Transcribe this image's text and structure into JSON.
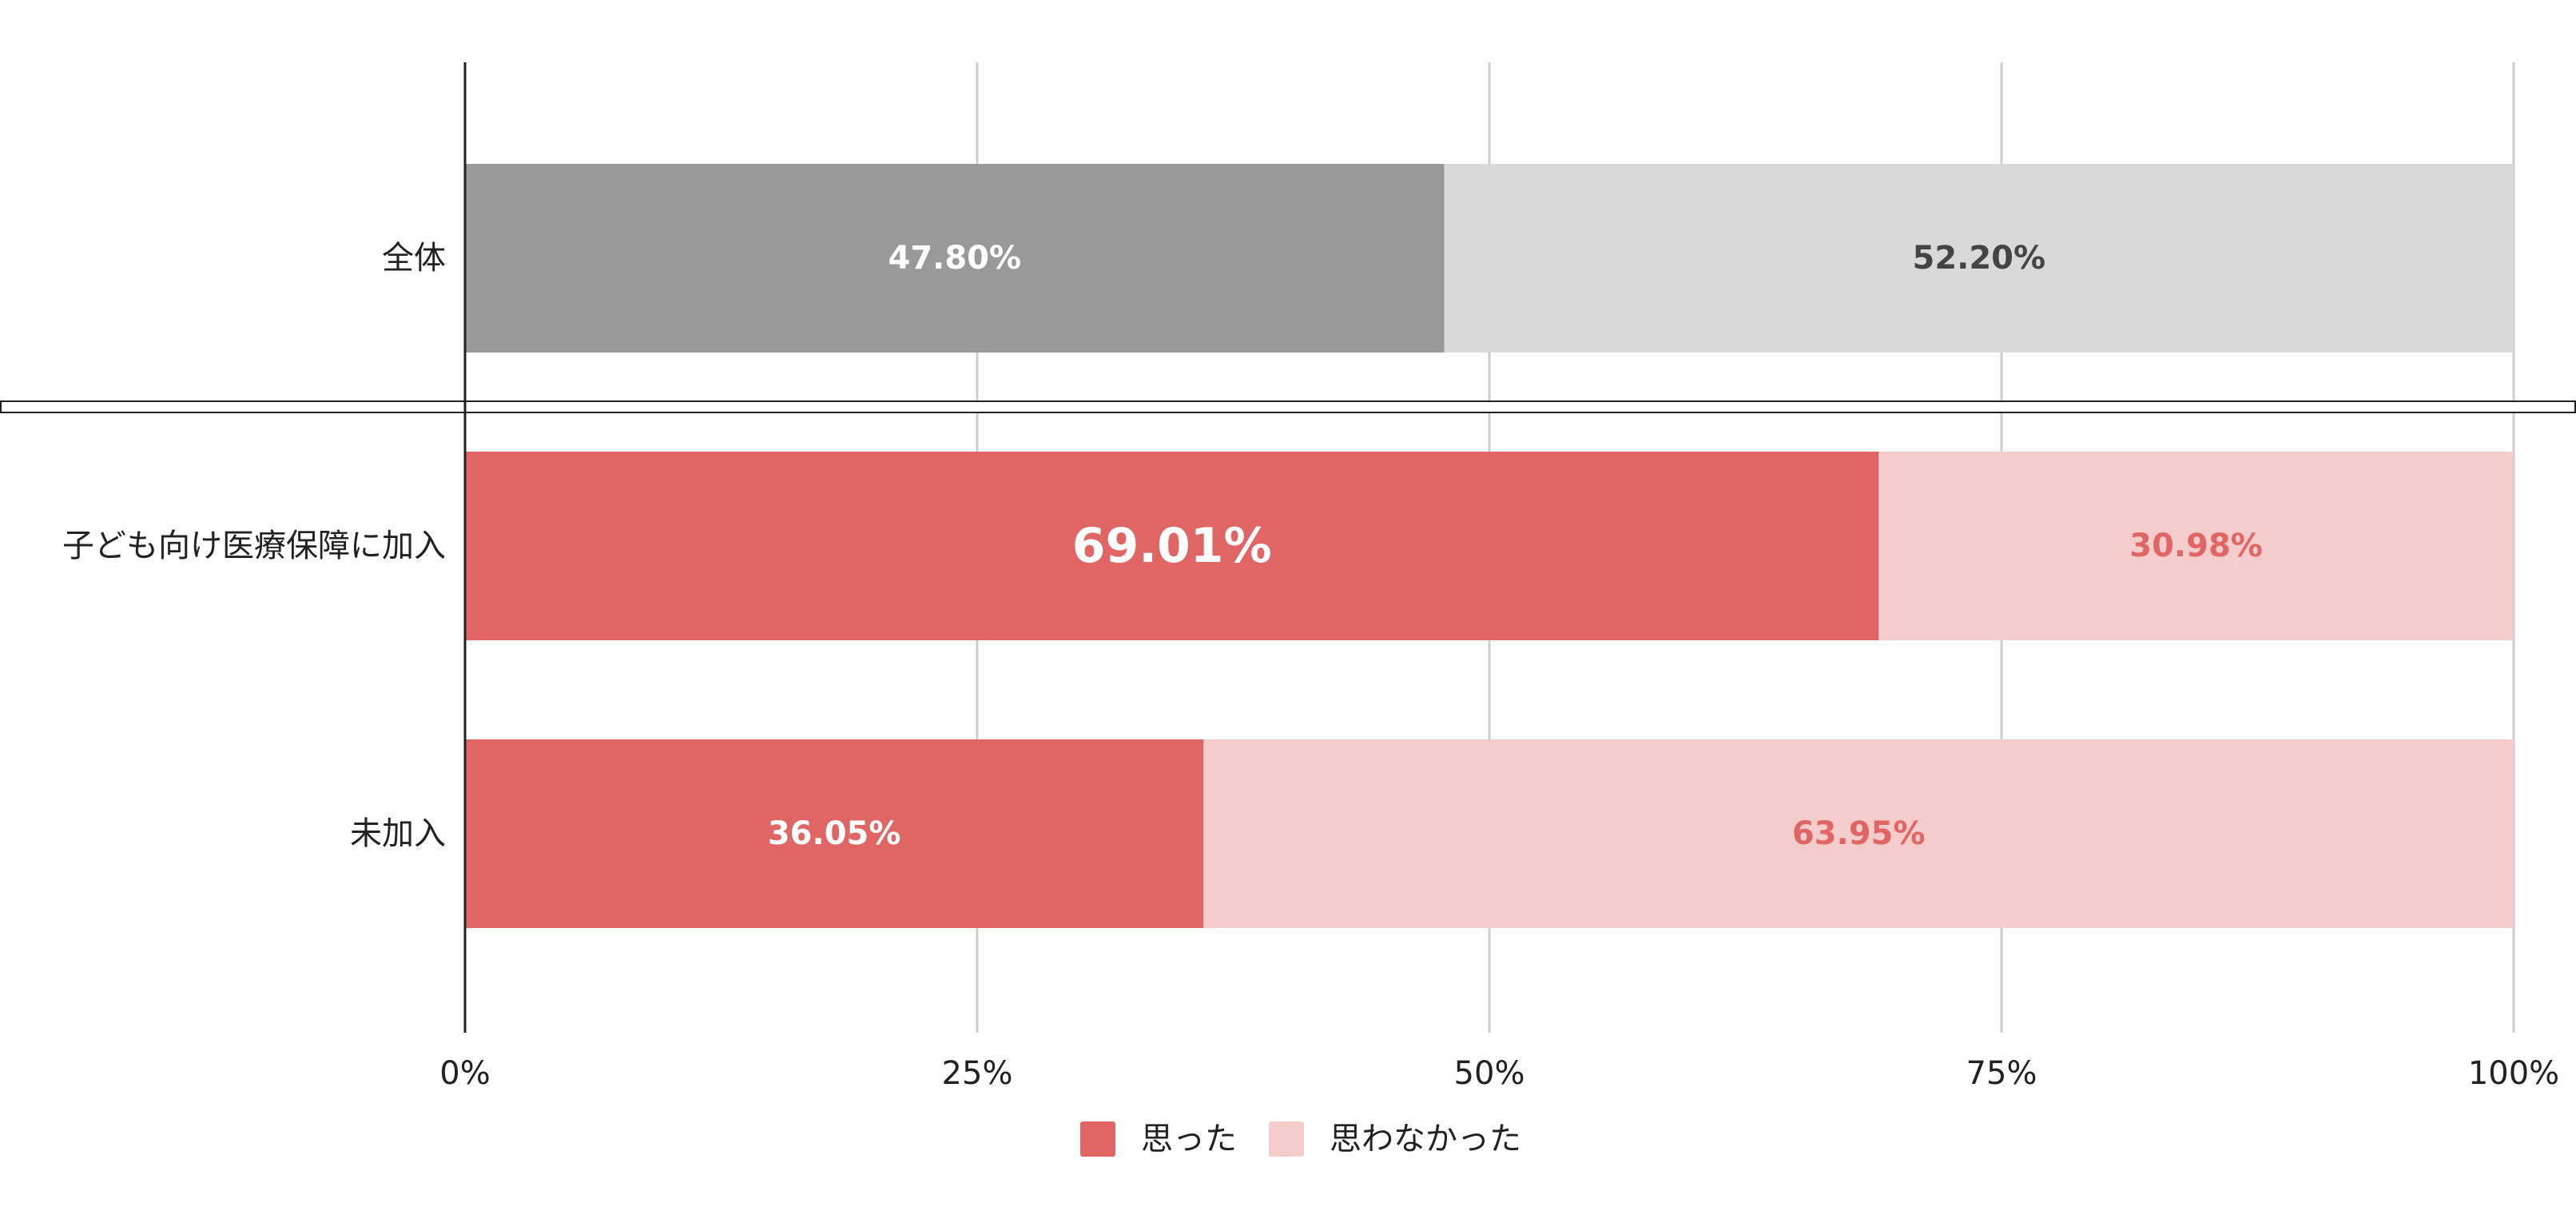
{
  "chart_data": {
    "type": "bar",
    "orientation": "horizontal",
    "stacked": "percent",
    "categories": [
      "全体",
      "子ども向け医療保障に加入",
      "未加入"
    ],
    "series": [
      {
        "name": "思った",
        "values": [
          47.8,
          69.01,
          36.05
        ],
        "labels": [
          "47.80%",
          "69.01%",
          "36.05%"
        ]
      },
      {
        "name": "思わなかった",
        "values": [
          52.2,
          30.98,
          63.95
        ],
        "labels": [
          "52.20%",
          "30.98%",
          "63.95%"
        ]
      }
    ],
    "xlim": [
      0,
      100
    ],
    "xticks": [
      "0%",
      "25%",
      "50%",
      "75%",
      "100%"
    ],
    "grid": true,
    "legend": "bottom",
    "axis_break": "between 全体 and 子ども向け医療保障に加入",
    "colors": {
      "overall_filled": "#999999",
      "overall_rest": "#d9d9d9",
      "filled": "#e06666",
      "rest": "#f4cccc",
      "grid": "#cccccc",
      "axis": "#222222",
      "label_light": "#ffffff",
      "label_dark": "#444444",
      "label_red": "#e06666",
      "text": "#222222"
    }
  }
}
